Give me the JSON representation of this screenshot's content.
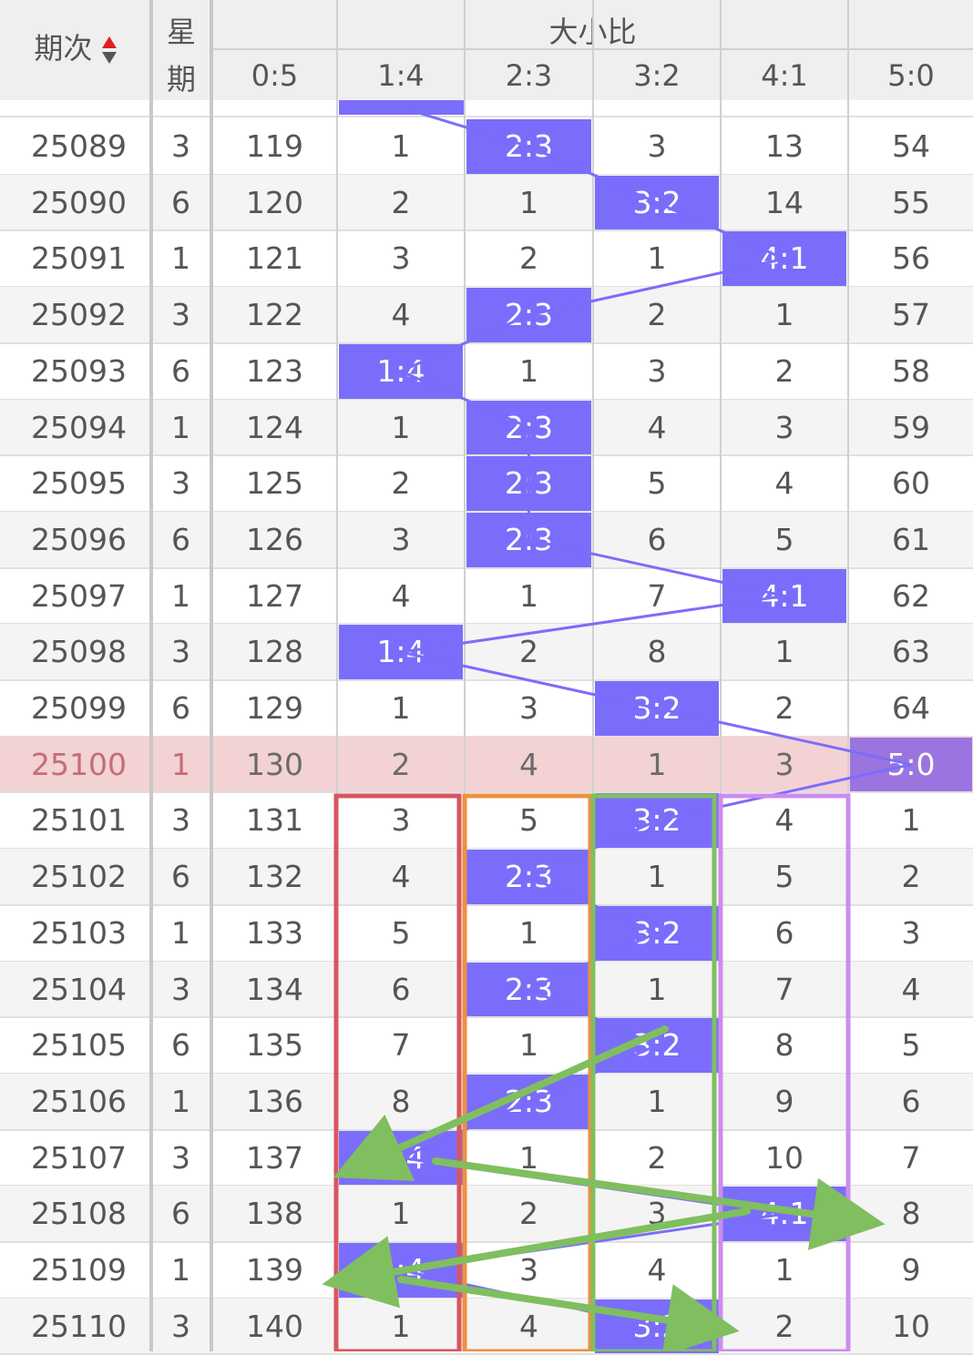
{
  "header": {
    "issue_label": "期次",
    "week_label_top": "星",
    "week_label_bottom": "期",
    "group_label": "大小比",
    "columns": [
      "0:5",
      "1:4",
      "2:3",
      "3:2",
      "4:1",
      "5:0"
    ]
  },
  "colors": {
    "mark": "#7b6dfb",
    "mark_highlight": "#9b74e0",
    "highlight_row": "#f3d2d4",
    "sort_up": "#e02020",
    "box_red": "#d9555e",
    "box_orange": "#ee9040",
    "box_green": "#7fbf5f",
    "box_violet": "#cc8cf0",
    "arrow": "#7fbf5f"
  },
  "rows": [
    {
      "issue": "25089",
      "week": "3",
      "cells": [
        "119",
        "1",
        "2:3",
        "3",
        "13",
        "54"
      ],
      "mark": 2
    },
    {
      "issue": "25090",
      "week": "6",
      "cells": [
        "120",
        "2",
        "1",
        "3:2",
        "14",
        "55"
      ],
      "mark": 3
    },
    {
      "issue": "25091",
      "week": "1",
      "cells": [
        "121",
        "3",
        "2",
        "1",
        "4:1",
        "56"
      ],
      "mark": 4
    },
    {
      "issue": "25092",
      "week": "3",
      "cells": [
        "122",
        "4",
        "2:3",
        "2",
        "1",
        "57"
      ],
      "mark": 2
    },
    {
      "issue": "25093",
      "week": "6",
      "cells": [
        "123",
        "1:4",
        "1",
        "3",
        "2",
        "58"
      ],
      "mark": 1
    },
    {
      "issue": "25094",
      "week": "1",
      "cells": [
        "124",
        "1",
        "2:3",
        "4",
        "3",
        "59"
      ],
      "mark": 2
    },
    {
      "issue": "25095",
      "week": "3",
      "cells": [
        "125",
        "2",
        "2:3",
        "5",
        "4",
        "60"
      ],
      "mark": 2
    },
    {
      "issue": "25096",
      "week": "6",
      "cells": [
        "126",
        "3",
        "2:3",
        "6",
        "5",
        "61"
      ],
      "mark": 2
    },
    {
      "issue": "25097",
      "week": "1",
      "cells": [
        "127",
        "4",
        "1",
        "7",
        "4:1",
        "62"
      ],
      "mark": 4
    },
    {
      "issue": "25098",
      "week": "3",
      "cells": [
        "128",
        "1:4",
        "2",
        "8",
        "1",
        "63"
      ],
      "mark": 1
    },
    {
      "issue": "25099",
      "week": "6",
      "cells": [
        "129",
        "1",
        "3",
        "3:2",
        "2",
        "64"
      ],
      "mark": 3
    },
    {
      "issue": "25100",
      "week": "1",
      "cells": [
        "130",
        "2",
        "4",
        "1",
        "3",
        "5:0"
      ],
      "mark": 5,
      "highlight": true
    },
    {
      "issue": "25101",
      "week": "3",
      "cells": [
        "131",
        "3",
        "5",
        "3:2",
        "4",
        "1"
      ],
      "mark": 3
    },
    {
      "issue": "25102",
      "week": "6",
      "cells": [
        "132",
        "4",
        "2:3",
        "1",
        "5",
        "2"
      ],
      "mark": 2
    },
    {
      "issue": "25103",
      "week": "1",
      "cells": [
        "133",
        "5",
        "1",
        "3:2",
        "6",
        "3"
      ],
      "mark": 3
    },
    {
      "issue": "25104",
      "week": "3",
      "cells": [
        "134",
        "6",
        "2:3",
        "1",
        "7",
        "4"
      ],
      "mark": 2
    },
    {
      "issue": "25105",
      "week": "6",
      "cells": [
        "135",
        "7",
        "1",
        "3:2",
        "8",
        "5"
      ],
      "mark": 3
    },
    {
      "issue": "25106",
      "week": "1",
      "cells": [
        "136",
        "8",
        "2:3",
        "1",
        "9",
        "6"
      ],
      "mark": 2
    },
    {
      "issue": "25107",
      "week": "3",
      "cells": [
        "137",
        "1:4",
        "1",
        "2",
        "10",
        "7"
      ],
      "mark": 1
    },
    {
      "issue": "25108",
      "week": "6",
      "cells": [
        "138",
        "1",
        "2",
        "3",
        "4:1",
        "8"
      ],
      "mark": 4
    },
    {
      "issue": "25109",
      "week": "1",
      "cells": [
        "139",
        "1:4",
        "3",
        "4",
        "1",
        "9"
      ],
      "mark": 1
    },
    {
      "issue": "25110",
      "week": "3",
      "cells": [
        "140",
        "1",
        "4",
        "3:2",
        "2",
        "10"
      ],
      "mark": 3
    }
  ]
}
